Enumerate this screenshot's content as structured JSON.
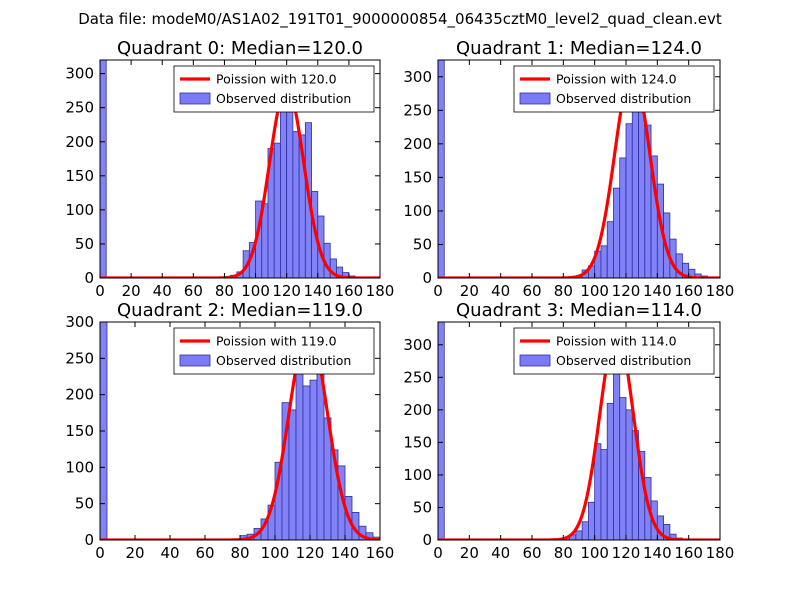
{
  "figure_title": "Data file: modeM0/AS1A02_191T01_9000000854_06435cztM0_level2_quad_clean.evt",
  "colors": {
    "hist_fill": "#7b7bf7",
    "hist_edge": "#2f2fa0",
    "fit_line": "#ff0000"
  },
  "chart_data": [
    {
      "type": "histogram+line",
      "title": "Quadrant 0: Median=120.0",
      "xlim": [
        0,
        180
      ],
      "ylim": [
        0,
        320
      ],
      "xticks": [
        0,
        20,
        40,
        60,
        80,
        100,
        120,
        140,
        160,
        180
      ],
      "yticks": [
        0,
        50,
        100,
        150,
        200,
        250,
        300
      ],
      "legend": {
        "location": "upper right",
        "entries": [
          "Poission with 120.0",
          "Observed distribution"
        ]
      },
      "series": [
        {
          "name": "Observed distribution",
          "kind": "bar",
          "bin_width": 4,
          "bins": [
            [
              0,
              320
            ],
            [
              84,
              4
            ],
            [
              88,
              9
            ],
            [
              92,
              40
            ],
            [
              96,
              52
            ],
            [
              100,
              113
            ],
            [
              104,
              109
            ],
            [
              108,
              190
            ],
            [
              112,
              198
            ],
            [
              116,
              264
            ],
            [
              120,
              307
            ],
            [
              124,
              215
            ],
            [
              128,
              210
            ],
            [
              132,
              228
            ],
            [
              136,
              127
            ],
            [
              140,
              91
            ],
            [
              144,
              51
            ],
            [
              148,
              28
            ],
            [
              152,
              16
            ],
            [
              156,
              8
            ],
            [
              160,
              3
            ]
          ]
        },
        {
          "name": "Poission with 120.0",
          "kind": "line",
          "mean": 120.0,
          "scale": 280,
          "x_range": [
            0,
            180
          ]
        }
      ]
    },
    {
      "type": "histogram+line",
      "title": "Quadrant 1: Median=124.0",
      "xlim": [
        0,
        180
      ],
      "ylim": [
        0,
        325
      ],
      "xticks": [
        0,
        20,
        40,
        60,
        80,
        100,
        120,
        140,
        160,
        180
      ],
      "yticks": [
        0,
        50,
        100,
        150,
        200,
        250,
        300
      ],
      "legend": {
        "location": "upper right",
        "entries": [
          "Poission with 124.0",
          "Observed distribution"
        ]
      },
      "series": [
        {
          "name": "Observed distribution",
          "kind": "bar",
          "bin_width": 4,
          "bins": [
            [
              0,
              325
            ],
            [
              88,
              3
            ],
            [
              92,
              12
            ],
            [
              96,
              18
            ],
            [
              100,
              40
            ],
            [
              104,
              48
            ],
            [
              108,
              84
            ],
            [
              112,
              134
            ],
            [
              116,
              179
            ],
            [
              120,
              230
            ],
            [
              124,
              299
            ],
            [
              128,
              303
            ],
            [
              132,
              228
            ],
            [
              136,
              182
            ],
            [
              140,
              140
            ],
            [
              144,
              97
            ],
            [
              148,
              58
            ],
            [
              152,
              36
            ],
            [
              156,
              22
            ],
            [
              160,
              13
            ],
            [
              164,
              6
            ],
            [
              168,
              3
            ]
          ]
        },
        {
          "name": "Poission with 124.0",
          "kind": "line",
          "mean": 124.0,
          "scale": 308,
          "x_range": [
            0,
            180
          ]
        }
      ]
    },
    {
      "type": "histogram+line",
      "title": "Quadrant 2: Median=119.0",
      "xlim": [
        0,
        160
      ],
      "ylim": [
        0,
        300
      ],
      "xticks": [
        0,
        20,
        40,
        60,
        80,
        100,
        120,
        140,
        160
      ],
      "yticks": [
        0,
        50,
        100,
        150,
        200,
        250,
        300
      ],
      "legend": {
        "location": "upper right",
        "entries": [
          "Poission with 119.0",
          "Observed distribution"
        ]
      },
      "series": [
        {
          "name": "Observed distribution",
          "kind": "bar",
          "bin_width": 4,
          "bins": [
            [
              0,
              300
            ],
            [
              80,
              6
            ],
            [
              84,
              8
            ],
            [
              88,
              16
            ],
            [
              92,
              29
            ],
            [
              96,
              48
            ],
            [
              100,
              107
            ],
            [
              104,
              189
            ],
            [
              108,
              179
            ],
            [
              112,
              260
            ],
            [
              116,
              212
            ],
            [
              120,
              220
            ],
            [
              124,
              260
            ],
            [
              128,
              168
            ],
            [
              132,
              124
            ],
            [
              136,
              102
            ],
            [
              140,
              60
            ],
            [
              144,
              38
            ],
            [
              148,
              19
            ],
            [
              152,
              10
            ],
            [
              156,
              4
            ]
          ]
        },
        {
          "name": "Poission with 119.0",
          "kind": "line",
          "mean": 119.0,
          "scale": 290,
          "x_range": [
            0,
            160
          ]
        }
      ]
    },
    {
      "type": "histogram+line",
      "title": "Quadrant 3: Median=114.0",
      "xlim": [
        0,
        180
      ],
      "ylim": [
        0,
        335
      ],
      "xticks": [
        0,
        20,
        40,
        60,
        80,
        100,
        120,
        140,
        160,
        180
      ],
      "yticks": [
        0,
        50,
        100,
        150,
        200,
        250,
        300
      ],
      "legend": {
        "location": "upper right",
        "entries": [
          "Poission with 114.0",
          "Observed distribution"
        ]
      },
      "series": [
        {
          "name": "Observed distribution",
          "kind": "bar",
          "bin_width": 4,
          "bins": [
            [
              0,
              335
            ],
            [
              80,
              4
            ],
            [
              84,
              8
            ],
            [
              88,
              14
            ],
            [
              92,
              28
            ],
            [
              96,
              58
            ],
            [
              100,
              148
            ],
            [
              104,
              139
            ],
            [
              108,
              210
            ],
            [
              112,
              311
            ],
            [
              116,
              219
            ],
            [
              120,
              200
            ],
            [
              124,
              168
            ],
            [
              128,
              136
            ],
            [
              132,
              96
            ],
            [
              136,
              60
            ],
            [
              140,
              37
            ],
            [
              144,
              24
            ],
            [
              148,
              9
            ],
            [
              152,
              3
            ]
          ]
        },
        {
          "name": "Poission with 114.0",
          "kind": "line",
          "mean": 114.0,
          "scale": 320,
          "x_range": [
            0,
            180
          ]
        }
      ]
    }
  ]
}
